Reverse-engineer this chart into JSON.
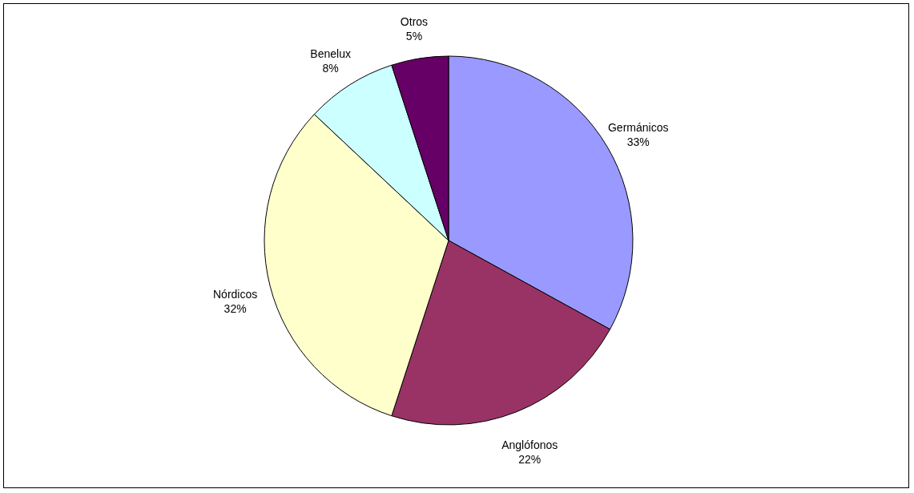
{
  "chart_data": {
    "type": "pie",
    "categories": [
      "Germánicos",
      "Anglófonos",
      "Nórdicos",
      "Benelux",
      "Otros"
    ],
    "values": [
      33,
      22,
      32,
      8,
      5
    ],
    "value_labels": [
      "33%",
      "22%",
      "32%",
      "8%",
      "5%"
    ],
    "colors": [
      "#9999ff",
      "#993366",
      "#ffffcc",
      "#ccffff",
      "#660066"
    ],
    "legend": false
  }
}
